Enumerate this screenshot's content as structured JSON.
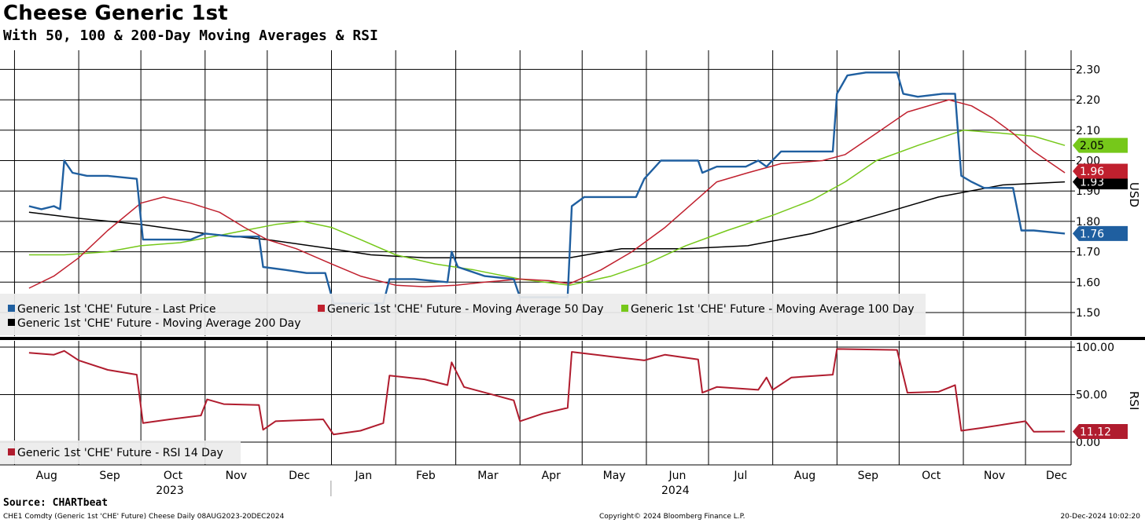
{
  "chart_data": [
    {
      "type": "line",
      "title": "Cheese Generic 1st",
      "subtitle": "With 50, 100 & 200-Day Moving Averages & RSI",
      "ylabel": "USD",
      "ylim": [
        1.45,
        2.34
      ],
      "yticks": [
        "2.30",
        "2.20",
        "2.10",
        "2.00",
        "1.90",
        "1.80",
        "1.70",
        "1.60",
        "1.50"
      ],
      "grid": true,
      "legend_position": "bottom-left",
      "series": [
        {
          "name": "Generic 1st 'CHE' Future - Last Price",
          "color": "#1f5fa0",
          "last_value": "1.76",
          "points": [
            [
              "2023-08-08",
              1.85
            ],
            [
              "2023-08-14",
              1.84
            ],
            [
              "2023-08-20",
              1.85
            ],
            [
              "2023-08-23",
              1.84
            ],
            [
              "2023-08-25",
              2.0
            ],
            [
              "2023-08-29",
              1.96
            ],
            [
              "2023-09-05",
              1.95
            ],
            [
              "2023-09-15",
              1.95
            ],
            [
              "2023-09-29",
              1.94
            ],
            [
              "2023-10-02",
              1.74
            ],
            [
              "2023-10-13",
              1.74
            ],
            [
              "2023-10-25",
              1.74
            ],
            [
              "2023-11-01",
              1.76
            ],
            [
              "2023-11-15",
              1.75
            ],
            [
              "2023-11-27",
              1.75
            ],
            [
              "2023-11-29",
              1.65
            ],
            [
              "2023-12-10",
              1.64
            ],
            [
              "2023-12-20",
              1.63
            ],
            [
              "2023-12-29",
              1.63
            ],
            [
              "2024-01-02",
              1.53
            ],
            [
              "2024-01-14",
              1.53
            ],
            [
              "2024-01-26",
              1.53
            ],
            [
              "2024-01-29",
              1.61
            ],
            [
              "2024-02-10",
              1.61
            ],
            [
              "2024-02-26",
              1.6
            ],
            [
              "2024-02-28",
              1.7
            ],
            [
              "2024-03-02",
              1.65
            ],
            [
              "2024-03-15",
              1.62
            ],
            [
              "2024-03-29",
              1.61
            ],
            [
              "2024-04-01",
              1.55
            ],
            [
              "2024-04-12",
              1.55
            ],
            [
              "2024-04-24",
              1.55
            ],
            [
              "2024-04-26",
              1.85
            ],
            [
              "2024-05-02",
              1.88
            ],
            [
              "2024-05-15",
              1.88
            ],
            [
              "2024-05-27",
              1.88
            ],
            [
              "2024-05-31",
              1.94
            ],
            [
              "2024-06-08",
              2.0
            ],
            [
              "2024-06-26",
              2.0
            ],
            [
              "2024-06-28",
              1.96
            ],
            [
              "2024-07-05",
              1.98
            ],
            [
              "2024-07-19",
              1.98
            ],
            [
              "2024-07-25",
              2.0
            ],
            [
              "2024-07-29",
              1.98
            ],
            [
              "2024-08-05",
              2.03
            ],
            [
              "2024-08-20",
              2.03
            ],
            [
              "2024-08-30",
              2.03
            ],
            [
              "2024-09-01",
              2.22
            ],
            [
              "2024-09-06",
              2.28
            ],
            [
              "2024-09-15",
              2.29
            ],
            [
              "2024-09-30",
              2.29
            ],
            [
              "2024-10-03",
              2.22
            ],
            [
              "2024-10-10",
              2.21
            ],
            [
              "2024-10-22",
              2.22
            ],
            [
              "2024-10-28",
              2.22
            ],
            [
              "2024-10-31",
              1.95
            ],
            [
              "2024-11-05",
              1.93
            ],
            [
              "2024-11-11",
              1.91
            ],
            [
              "2024-11-25",
              1.91
            ],
            [
              "2024-11-29",
              1.77
            ],
            [
              "2024-12-05",
              1.77
            ],
            [
              "2024-12-20",
              1.76
            ]
          ]
        },
        {
          "name": "Generic 1st 'CHE' Future - Moving Average 50 Day",
          "color": "#c0202e",
          "last_value": "1.96",
          "points": [
            [
              "2023-08-08",
              1.58
            ],
            [
              "2023-08-20",
              1.62
            ],
            [
              "2023-09-01",
              1.68
            ],
            [
              "2023-09-15",
              1.77
            ],
            [
              "2023-10-01",
              1.86
            ],
            [
              "2023-10-12",
              1.88
            ],
            [
              "2023-10-25",
              1.86
            ],
            [
              "2023-11-08",
              1.83
            ],
            [
              "2023-11-20",
              1.78
            ],
            [
              "2023-12-01",
              1.74
            ],
            [
              "2023-12-15",
              1.71
            ],
            [
              "2024-01-01",
              1.66
            ],
            [
              "2024-01-15",
              1.62
            ],
            [
              "2024-02-01",
              1.59
            ],
            [
              "2024-02-15",
              1.585
            ],
            [
              "2024-03-01",
              1.59
            ],
            [
              "2024-03-15",
              1.6
            ],
            [
              "2024-04-01",
              1.61
            ],
            [
              "2024-04-15",
              1.605
            ],
            [
              "2024-04-25",
              1.595
            ],
            [
              "2024-05-10",
              1.64
            ],
            [
              "2024-05-25",
              1.7
            ],
            [
              "2024-06-10",
              1.78
            ],
            [
              "2024-06-25",
              1.87
            ],
            [
              "2024-07-05",
              1.93
            ],
            [
              "2024-07-20",
              1.96
            ],
            [
              "2024-08-05",
              1.99
            ],
            [
              "2024-08-25",
              2.0
            ],
            [
              "2024-09-05",
              2.02
            ],
            [
              "2024-09-20",
              2.09
            ],
            [
              "2024-10-05",
              2.16
            ],
            [
              "2024-10-25",
              2.2
            ],
            [
              "2024-11-05",
              2.18
            ],
            [
              "2024-11-15",
              2.14
            ],
            [
              "2024-11-25",
              2.09
            ],
            [
              "2024-12-05",
              2.03
            ],
            [
              "2024-12-20",
              1.96
            ]
          ]
        },
        {
          "name": "Generic 1st 'CHE' Future - Moving Average 100 Day",
          "color": "#76c81a",
          "last_value": "2.05",
          "points": [
            [
              "2023-08-08",
              1.69
            ],
            [
              "2023-08-25",
              1.69
            ],
            [
              "2023-09-15",
              1.7
            ],
            [
              "2023-10-01",
              1.72
            ],
            [
              "2023-10-20",
              1.73
            ],
            [
              "2023-11-05",
              1.75
            ],
            [
              "2023-11-20",
              1.77
            ],
            [
              "2023-12-05",
              1.79
            ],
            [
              "2023-12-18",
              1.8
            ],
            [
              "2024-01-01",
              1.78
            ],
            [
              "2024-01-15",
              1.74
            ],
            [
              "2024-02-01",
              1.69
            ],
            [
              "2024-02-20",
              1.66
            ],
            [
              "2024-03-10",
              1.64
            ],
            [
              "2024-04-01",
              1.61
            ],
            [
              "2024-04-25",
              1.59
            ],
            [
              "2024-05-15",
              1.62
            ],
            [
              "2024-06-01",
              1.66
            ],
            [
              "2024-06-20",
              1.72
            ],
            [
              "2024-07-10",
              1.77
            ],
            [
              "2024-08-01",
              1.82
            ],
            [
              "2024-08-20",
              1.87
            ],
            [
              "2024-09-05",
              1.93
            ],
            [
              "2024-09-20",
              2.0
            ],
            [
              "2024-10-10",
              2.05
            ],
            [
              "2024-11-01",
              2.1
            ],
            [
              "2024-11-20",
              2.09
            ],
            [
              "2024-12-05",
              2.08
            ],
            [
              "2024-12-20",
              2.05
            ]
          ]
        },
        {
          "name": "Generic 1st 'CHE' Future - Moving Average 200 Day",
          "color": "#000000",
          "last_value": "1.93",
          "points": [
            [
              "2023-08-08",
              1.83
            ],
            [
              "2023-09-01",
              1.81
            ],
            [
              "2023-10-01",
              1.79
            ],
            [
              "2023-11-01",
              1.76
            ],
            [
              "2023-12-01",
              1.74
            ],
            [
              "2024-01-01",
              1.71
            ],
            [
              "2024-01-20",
              1.69
            ],
            [
              "2024-02-15",
              1.68
            ],
            [
              "2024-03-15",
              1.68
            ],
            [
              "2024-04-25",
              1.68
            ],
            [
              "2024-05-20",
              1.71
            ],
            [
              "2024-06-20",
              1.71
            ],
            [
              "2024-07-20",
              1.72
            ],
            [
              "2024-08-20",
              1.76
            ],
            [
              "2024-09-20",
              1.82
            ],
            [
              "2024-10-20",
              1.88
            ],
            [
              "2024-11-20",
              1.92
            ],
            [
              "2024-12-20",
              1.93
            ]
          ]
        }
      ],
      "x_axis": {
        "months": [
          "Aug",
          "Sep",
          "Oct",
          "Nov",
          "Dec",
          "Jan",
          "Feb",
          "Mar",
          "Apr",
          "May",
          "Jun",
          "Jul",
          "Aug",
          "Sep",
          "Oct",
          "Nov",
          "Dec"
        ],
        "years": [
          "2023",
          "2024"
        ]
      }
    },
    {
      "type": "line",
      "ylabel": "RSI",
      "ylim": [
        -6,
        106
      ],
      "yticks": [
        "100.00",
        "50.00",
        "0.00"
      ],
      "grid": true,
      "legend_position": "bottom-left",
      "series": [
        {
          "name": "Generic 1st 'CHE' Future - RSI 14 Day",
          "color": "#b01c2e",
          "last_value": "11.12",
          "points": [
            [
              "2023-08-08",
              94
            ],
            [
              "2023-08-20",
              92
            ],
            [
              "2023-08-25",
              96
            ],
            [
              "2023-09-01",
              86
            ],
            [
              "2023-09-15",
              76
            ],
            [
              "2023-09-29",
              71
            ],
            [
              "2023-10-02",
              20
            ],
            [
              "2023-10-15",
              24
            ],
            [
              "2023-10-30",
              28
            ],
            [
              "2023-11-02",
              45
            ],
            [
              "2023-11-10",
              40
            ],
            [
              "2023-11-27",
              39
            ],
            [
              "2023-11-29",
              13
            ],
            [
              "2023-12-05",
              22
            ],
            [
              "2023-12-28",
              24
            ],
            [
              "2024-01-02",
              8
            ],
            [
              "2024-01-15",
              12
            ],
            [
              "2024-01-26",
              20
            ],
            [
              "2024-01-29",
              70
            ],
            [
              "2024-02-15",
              66
            ],
            [
              "2024-02-26",
              60
            ],
            [
              "2024-02-28",
              84
            ],
            [
              "2024-03-05",
              58
            ],
            [
              "2024-03-29",
              44
            ],
            [
              "2024-04-01",
              22
            ],
            [
              "2024-04-12",
              30
            ],
            [
              "2024-04-24",
              36
            ],
            [
              "2024-04-26",
              95
            ],
            [
              "2024-05-15",
              90
            ],
            [
              "2024-05-31",
              86
            ],
            [
              "2024-06-10",
              92
            ],
            [
              "2024-06-26",
              87
            ],
            [
              "2024-06-28",
              52
            ],
            [
              "2024-07-05",
              58
            ],
            [
              "2024-07-25",
              55
            ],
            [
              "2024-07-29",
              68
            ],
            [
              "2024-08-01",
              55
            ],
            [
              "2024-08-10",
              68
            ],
            [
              "2024-08-30",
              71
            ],
            [
              "2024-09-01",
              98
            ],
            [
              "2024-09-30",
              97
            ],
            [
              "2024-10-05",
              52
            ],
            [
              "2024-10-20",
              53
            ],
            [
              "2024-10-28",
              60
            ],
            [
              "2024-10-31",
              12
            ],
            [
              "2024-11-10",
              15
            ],
            [
              "2024-11-25",
              20
            ],
            [
              "2024-12-01",
              22
            ],
            [
              "2024-12-05",
              11
            ],
            [
              "2024-12-20",
              11.12
            ]
          ]
        }
      ]
    }
  ],
  "source": "Source: CHARTbeat",
  "footer": {
    "left": "CHE1 Comdty (Generic 1st 'CHE' Future) Cheese  Daily 08AUG2023-20DEC2024",
    "center": "Copyright© 2024 Bloomberg Finance L.P.",
    "right": "20-Dec-2024 10:02:20"
  }
}
